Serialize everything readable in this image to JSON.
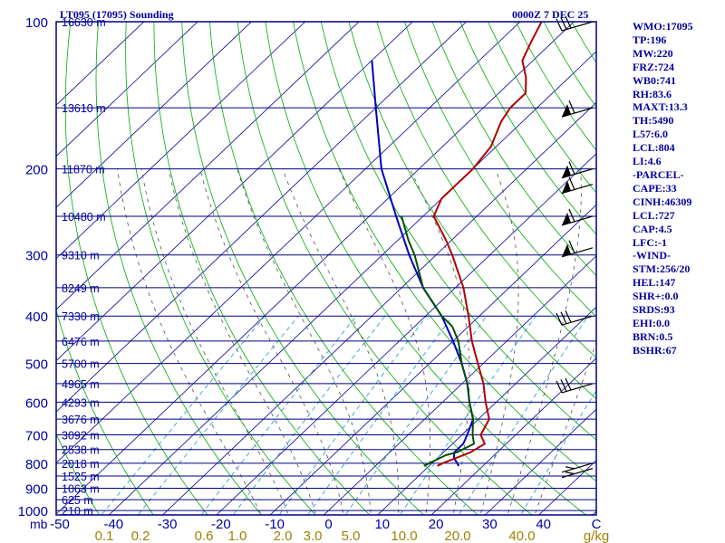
{
  "title": {
    "station": "LT095 (17095) Sounding",
    "time": "0000Z  7 DEC 25"
  },
  "stats": [
    "WMO:17095",
    "TP:196",
    "MW:220",
    "FRZ:724",
    "WB0:741",
    "RH:83.6",
    "MAXT:13.3",
    "TH:5490",
    "L57:6.0",
    "LCL:804",
    "LI:4.6",
    "-PARCEL-",
    "CAPE:33",
    "CINH:46309",
    "LCL:727",
    "CAP:4.5",
    "LFC:-1",
    "-WIND-",
    "STM:256/20",
    "HEL:147",
    "SHR+:0.0",
    "SRDS:93",
    "EHI:0.0",
    "BRN:0.5",
    "BSHR:67"
  ],
  "colors": {
    "frame": "#000080",
    "temp": "#b00000",
    "dewpoint": "#005000",
    "parcel": "#0000c0",
    "isotherm": "#0000a0",
    "dry_adiabat": "#00aa00",
    "moist_adiabat": "#505050",
    "mixing_ratio": "#30a0d0",
    "wind": "#000000",
    "label": "#0000a0",
    "mr_label": "#a08000"
  },
  "chart_data": {
    "type": "line",
    "subtype": "skew-T log-P sounding",
    "pressure_axis": {
      "range_hPa": [
        1000,
        100
      ],
      "ticks": [
        100,
        200,
        300,
        400,
        500,
        600,
        700,
        800,
        900,
        1000
      ],
      "unit_label": "mb"
    },
    "temperature_axis": {
      "range_C": [
        -50,
        50
      ],
      "ticks": [
        -50,
        -40,
        -30,
        -20,
        -10,
        0,
        10,
        20,
        30,
        40
      ],
      "tick_labels": [
        "-50",
        "-40",
        "-30",
        "-20",
        "-10",
        "0",
        "10",
        "20",
        "30",
        "40",
        "C"
      ]
    },
    "mixing_ratio_labels": [
      "0.1",
      "0.2",
      "0.6",
      "1.0",
      "2.0",
      "3.0",
      "5.0",
      "10.0",
      "20.0",
      "40.0",
      "g/kg"
    ],
    "mixing_ratio_values": [
      0.1,
      0.2,
      0.6,
      1.0,
      2.0,
      3.0,
      5.0,
      10.0,
      20.0,
      40.0
    ],
    "height_levels": [
      {
        "p": 100,
        "label": "16630 m"
      },
      {
        "p": 150,
        "label": "13610 m"
      },
      {
        "p": 200,
        "label": "11870 m"
      },
      {
        "p": 250,
        "label": "10480 m"
      },
      {
        "p": 300,
        "label": "9310 m"
      },
      {
        "p": 350,
        "label": "8249 m"
      },
      {
        "p": 400,
        "label": "7330 m"
      },
      {
        "p": 450,
        "label": "6476 m"
      },
      {
        "p": 500,
        "label": "5700 m"
      },
      {
        "p": 550,
        "label": "4965 m"
      },
      {
        "p": 600,
        "label": "4293 m"
      },
      {
        "p": 650,
        "label": "3676 m"
      },
      {
        "p": 700,
        "label": "3092 m"
      },
      {
        "p": 750,
        "label": "2538 m"
      },
      {
        "p": 800,
        "label": "2018 m"
      },
      {
        "p": 850,
        "label": "1525 m"
      },
      {
        "p": 900,
        "label": "1063 m"
      },
      {
        "p": 950,
        "label": "625 m"
      },
      {
        "p": 1000,
        "label": "210 m"
      }
    ],
    "temperature_profile": [
      [
        810,
        11.5
      ],
      [
        800,
        12.0
      ],
      [
        760,
        15.0
      ],
      [
        730,
        16.0
      ],
      [
        700,
        13.5
      ],
      [
        650,
        12.0
      ],
      [
        600,
        8.0
      ],
      [
        550,
        4.0
      ],
      [
        500,
        -1.0
      ],
      [
        450,
        -6.5
      ],
      [
        400,
        -12.0
      ],
      [
        350,
        -18.5
      ],
      [
        300,
        -27.0
      ],
      [
        280,
        -31.0
      ],
      [
        250,
        -38.0
      ],
      [
        230,
        -40.0
      ],
      [
        200,
        -40.0
      ],
      [
        180,
        -41.0
      ],
      [
        160,
        -44.0
      ],
      [
        150,
        -45.0
      ],
      [
        140,
        -45.0
      ],
      [
        130,
        -48.0
      ],
      [
        120,
        -52.0
      ],
      [
        110,
        -54.0
      ],
      [
        100,
        -56.0
      ]
    ],
    "dewpoint_profile": [
      [
        810,
        9.0
      ],
      [
        800,
        9.5
      ],
      [
        770,
        11.0
      ],
      [
        760,
        12.5
      ],
      [
        730,
        14.0
      ],
      [
        700,
        12.0
      ],
      [
        650,
        9.0
      ],
      [
        600,
        5.0
      ],
      [
        550,
        1.0
      ],
      [
        500,
        -4.0
      ],
      [
        450,
        -9.0
      ],
      [
        420,
        -13.0
      ],
      [
        400,
        -17.0
      ],
      [
        350,
        -26.0
      ],
      [
        300,
        -34.0
      ],
      [
        280,
        -38.0
      ],
      [
        250,
        -44.0
      ]
    ],
    "parcel_profile": [
      [
        810,
        15.5
      ],
      [
        780,
        13.0
      ],
      [
        760,
        12.0
      ],
      [
        730,
        12.0
      ],
      [
        700,
        11.0
      ],
      [
        650,
        9.0
      ],
      [
        600,
        5.0
      ],
      [
        550,
        1.0
      ],
      [
        500,
        -4.0
      ],
      [
        450,
        -10.0
      ],
      [
        400,
        -17.0
      ],
      [
        350,
        -26.0
      ],
      [
        300,
        -35.0
      ],
      [
        250,
        -45.0
      ],
      [
        200,
        -57.0
      ],
      [
        150,
        -70.0
      ],
      [
        120,
        -80.0
      ]
    ],
    "wind_barbs": [
      {
        "p": 820,
        "kind": "short"
      },
      {
        "p": 800,
        "kind": "short"
      },
      {
        "p": 550,
        "kind": "barb"
      },
      {
        "p": 400,
        "kind": "barb"
      },
      {
        "p": 290,
        "kind": "flag"
      },
      {
        "p": 250,
        "kind": "flag"
      },
      {
        "p": 215,
        "kind": "flag"
      },
      {
        "p": 200,
        "kind": "flag"
      },
      {
        "p": 150,
        "kind": "flag"
      },
      {
        "p": 100,
        "kind": "barb"
      }
    ]
  }
}
